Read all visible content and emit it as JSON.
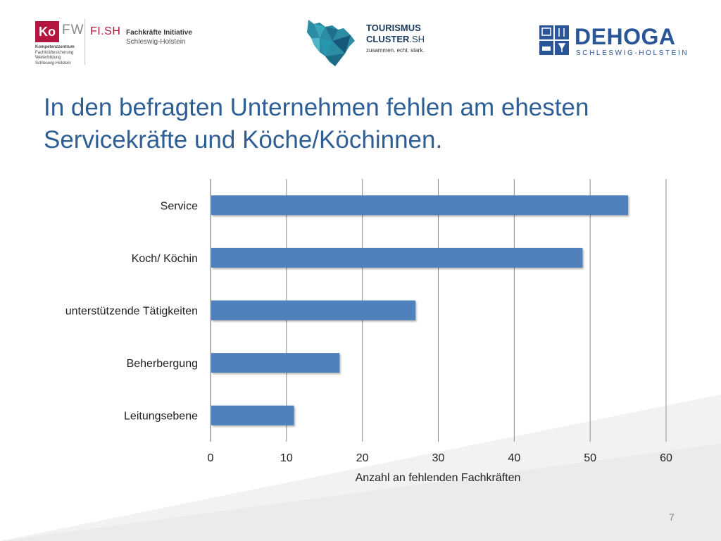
{
  "title": {
    "line1": "In den befragten Unternehmen fehlen am ehesten",
    "line2": "Servicekräfte und Köche/Köchinnen."
  },
  "logos": {
    "kofw": {
      "badge": "Ko",
      "fw": "FW",
      "subtitle_bold": "Kompetenzzentrum",
      "subtitle_lines": [
        "Fachkräftesicherung",
        "Weiterbildung",
        "Schleswig-Holstein"
      ],
      "fish": "FI.SH",
      "initiative": "Fachkräfte Initiative",
      "region": "Schleswig-Holstein"
    },
    "tourism": {
      "line1": "TOURISMUS",
      "line2_bold": "CLUSTER",
      "line2_light": ".SH",
      "tagline": "zusammen. echt. stark."
    },
    "dehoga": {
      "name": "DEHOGA",
      "region": "SCHLESWIG-HOLSTEIN"
    }
  },
  "chart_data": {
    "type": "bar",
    "orientation": "horizontal",
    "categories": [
      "Service",
      "Koch/ Köchin",
      "unterstützende Tätigkeiten",
      "Beherbergung",
      "Leitungsebene"
    ],
    "values": [
      55,
      49,
      27,
      17,
      11
    ],
    "xlabel": "Anzahl an fehlenden Fachkräften",
    "ylabel": "",
    "xlim": [
      0,
      60
    ],
    "xticks": [
      0,
      10,
      20,
      30,
      40,
      50,
      60
    ],
    "grid": true,
    "bar_color": "#4f81bd"
  },
  "page_number": "7"
}
